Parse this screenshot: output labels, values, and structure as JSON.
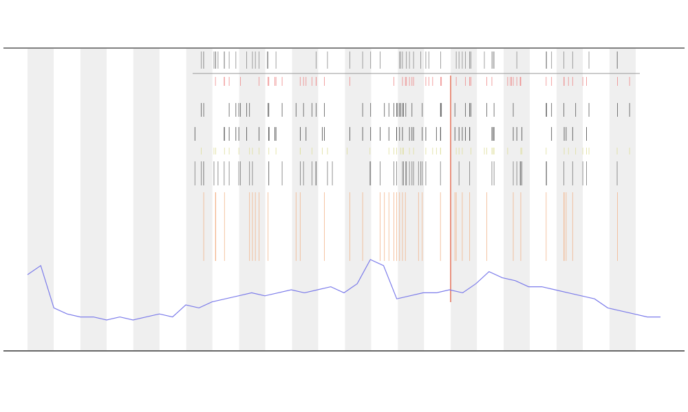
{
  "chart_data": {
    "type": "line",
    "series": [
      {
        "color": "#7b7bea",
        "values": [
          25,
          28,
          14,
          12,
          11,
          11,
          10,
          11,
          10,
          11,
          12,
          11,
          15,
          14,
          16,
          17,
          18,
          19,
          18,
          19,
          20,
          19,
          20,
          21,
          19,
          22,
          30,
          28,
          17,
          18,
          19,
          19,
          20,
          19,
          22,
          26,
          24,
          23,
          21,
          21,
          20,
          19,
          18,
          17,
          14,
          13,
          12,
          11,
          11
        ]
      }
    ],
    "ylim": [
      0,
      100
    ]
  }
}
